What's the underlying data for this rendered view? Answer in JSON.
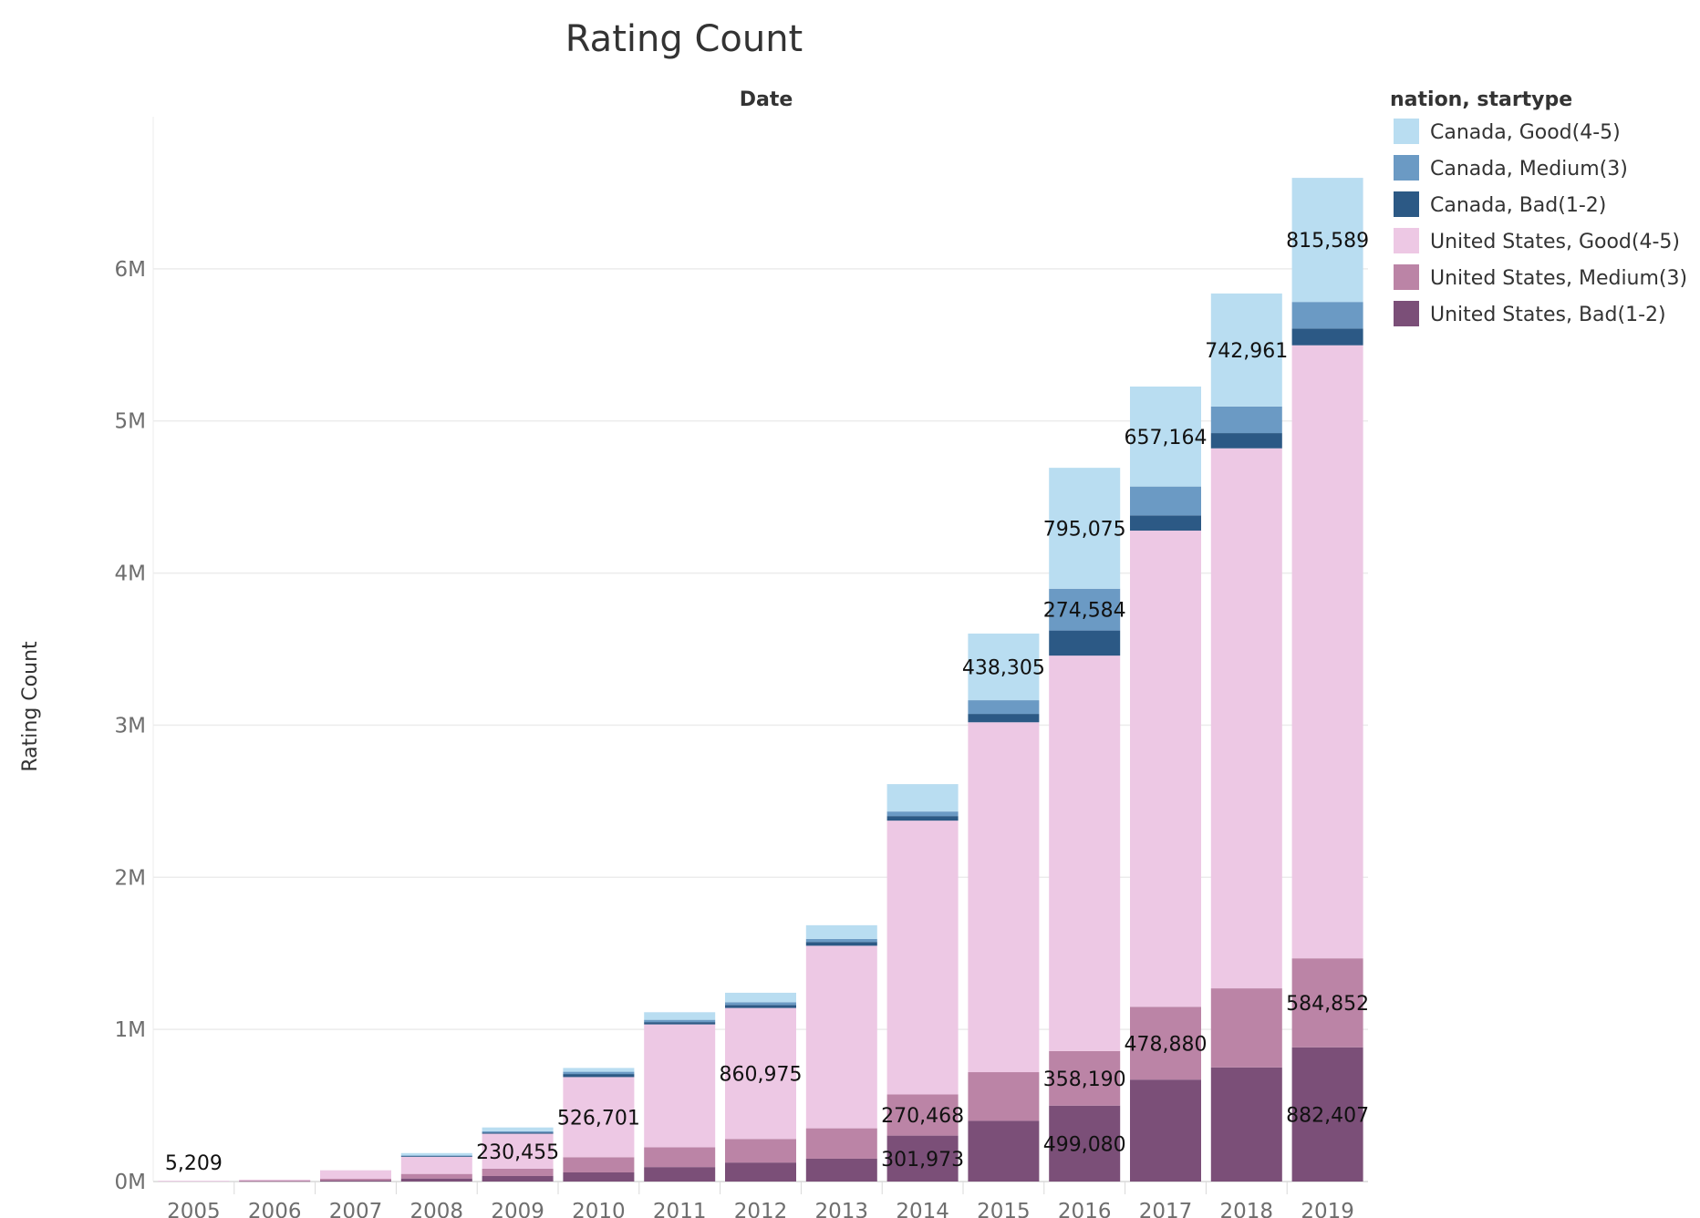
{
  "chart_data": {
    "type": "bar",
    "stacked": true,
    "title": "Rating Count",
    "column_header": "Date",
    "ylabel": "Rating Count",
    "xlabel": "",
    "ylim": [
      0,
      7000000
    ],
    "y_ticks": [
      {
        "value": 0,
        "label": "0M"
      },
      {
        "value": 1000000,
        "label": "1M"
      },
      {
        "value": 2000000,
        "label": "2M"
      },
      {
        "value": 3000000,
        "label": "3M"
      },
      {
        "value": 4000000,
        "label": "4M"
      },
      {
        "value": 5000000,
        "label": "5M"
      },
      {
        "value": 6000000,
        "label": "6M"
      }
    ],
    "categories": [
      "2005",
      "2006",
      "2007",
      "2008",
      "2009",
      "2010",
      "2011",
      "2012",
      "2013",
      "2014",
      "2015",
      "2016",
      "2017",
      "2018",
      "2019"
    ],
    "legend_title": "nation, startype",
    "legend_position": "top-right",
    "series": [
      {
        "name": "United States, Bad(1-2)",
        "color": "#7b4f78",
        "values": [
          0,
          2000,
          6000,
          20000,
          36000,
          60000,
          95000,
          125000,
          150000,
          301973,
          399000,
          499080,
          670000,
          750000,
          882407
        ]
      },
      {
        "name": "United States, Medium(3)",
        "color": "#bb84a6",
        "values": [
          0,
          5000,
          12000,
          30000,
          48000,
          100000,
          130000,
          155000,
          200000,
          270468,
          320000,
          358190,
          478880,
          520000,
          584852
        ]
      },
      {
        "name": "United States, Good(4-5)",
        "color": "#edc8e4",
        "values": [
          5209,
          6000,
          56000,
          112000,
          230455,
          526701,
          808000,
          860975,
          1200000,
          1800000,
          2300000,
          2600000,
          3130000,
          3550000,
          4030000
        ]
      },
      {
        "name": "Canada, Bad(1-2)",
        "color": "#2c5985",
        "values": [
          0,
          0,
          0,
          5000,
          8000,
          20000,
          15000,
          20000,
          25000,
          30000,
          55000,
          165000,
          100000,
          100000,
          110000
        ]
      },
      {
        "name": "Canada, Medium(3)",
        "color": "#6b9ac4",
        "values": [
          0,
          0,
          0,
          5000,
          8000,
          15000,
          15000,
          18000,
          20000,
          30000,
          90000,
          274584,
          190000,
          175000,
          175000
        ]
      },
      {
        "name": "Canada, Good(4-5)",
        "color": "#b9ddf1",
        "values": [
          0,
          0,
          0,
          15000,
          25000,
          25000,
          50000,
          62000,
          90000,
          180000,
          438305,
          795075,
          657164,
          742961,
          815589
        ]
      }
    ],
    "data_labels": [
      {
        "category": "2005",
        "series": "United States, Good(4-5)",
        "text": "5,209",
        "placement": "above"
      },
      {
        "category": "2009",
        "series": "United States, Good(4-5)",
        "text": "230,455",
        "placement": "center"
      },
      {
        "category": "2010",
        "series": "United States, Good(4-5)",
        "text": "526,701",
        "placement": "center"
      },
      {
        "category": "2012",
        "series": "United States, Good(4-5)",
        "text": "860,975",
        "placement": "center"
      },
      {
        "category": "2014",
        "series": "United States, Bad(1-2)",
        "text": "301,973",
        "placement": "center"
      },
      {
        "category": "2014",
        "series": "United States, Medium(3)",
        "text": "270,468",
        "placement": "center"
      },
      {
        "category": "2015",
        "series": "Canada, Good(4-5)",
        "text": "438,305",
        "placement": "center"
      },
      {
        "category": "2016",
        "series": "United States, Bad(1-2)",
        "text": "499,080",
        "placement": "center"
      },
      {
        "category": "2016",
        "series": "United States, Medium(3)",
        "text": "358,190",
        "placement": "center"
      },
      {
        "category": "2016",
        "series": "Canada, Medium(3)",
        "text": "274,584",
        "placement": "center"
      },
      {
        "category": "2016",
        "series": "Canada, Good(4-5)",
        "text": "795,075",
        "placement": "center"
      },
      {
        "category": "2017",
        "series": "United States, Medium(3)",
        "text": "478,880",
        "placement": "center"
      },
      {
        "category": "2017",
        "series": "Canada, Good(4-5)",
        "text": "657,164",
        "placement": "center"
      },
      {
        "category": "2018",
        "series": "Canada, Good(4-5)",
        "text": "742,961",
        "placement": "center"
      },
      {
        "category": "2019",
        "series": "United States, Bad(1-2)",
        "text": "882,407",
        "placement": "center"
      },
      {
        "category": "2019",
        "series": "United States, Medium(3)",
        "text": "584,852",
        "placement": "center"
      },
      {
        "category": "2019",
        "series": "Canada, Good(4-5)",
        "text": "815,589",
        "placement": "center"
      }
    ],
    "legend_order": [
      "Canada, Good(4-5)",
      "Canada, Medium(3)",
      "Canada, Bad(1-2)",
      "United States, Good(4-5)",
      "United States, Medium(3)",
      "United States, Bad(1-2)"
    ],
    "grid": true
  }
}
